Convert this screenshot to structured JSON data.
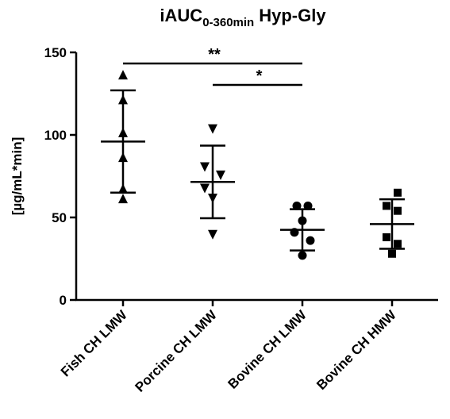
{
  "chart_data": {
    "type": "scatter",
    "title": {
      "main": "iAUC",
      "subscript": "0-360min",
      "suffix": "Hyp-Gly"
    },
    "xlabel": "",
    "ylabel": "[µg/mL*min]",
    "ylim": [
      0,
      150
    ],
    "yticks": [
      "0",
      "50",
      "100",
      "150"
    ],
    "grid": false,
    "legend": "none",
    "categories": [
      "Fish CH LMW",
      "Porcine CH LMW",
      "Bovine CH LMW",
      "Bovine CH HMW"
    ],
    "groups": [
      {
        "category": "Fish CH LMW",
        "marker": "triangle-up",
        "points": [
          136,
          121,
          101,
          86,
          67,
          61
        ],
        "mean": 96,
        "error_low": 65,
        "error_high": 127
      },
      {
        "category": "Porcine CH LMW",
        "marker": "triangle-down",
        "points": [
          104,
          81,
          76,
          68,
          62,
          40
        ],
        "mean": 71.5,
        "error_low": 49.5,
        "error_high": 93.5
      },
      {
        "category": "Bovine CH LMW",
        "marker": "circle",
        "points": [
          57,
          57,
          48,
          41,
          36,
          27
        ],
        "mean": 42.5,
        "error_low": 30,
        "error_high": 55
      },
      {
        "category": "Bovine CH HMW",
        "marker": "square",
        "points": [
          65,
          57,
          54,
          38,
          34,
          28
        ],
        "mean": 46,
        "error_low": 31,
        "error_high": 61
      }
    ],
    "significance": [
      {
        "from": "Fish CH LMW",
        "to": "Bovine CH LMW",
        "label": "**"
      },
      {
        "from": "Porcine CH LMW",
        "to": "Bovine CH LMW",
        "label": "*"
      }
    ],
    "color": "#000000"
  }
}
